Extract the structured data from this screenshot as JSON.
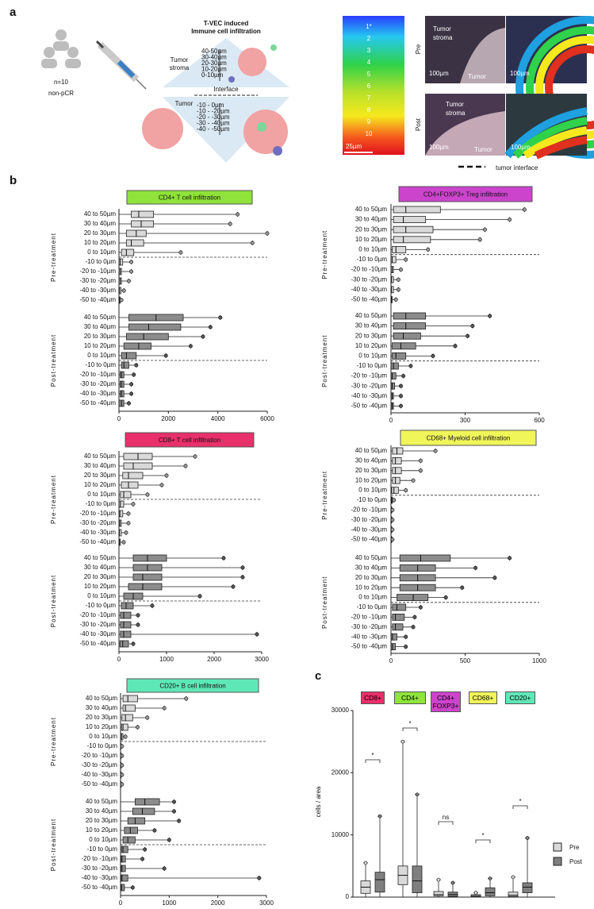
{
  "panel_labels": [
    "a",
    "b",
    "c"
  ],
  "panel_a": {
    "cohort": "n=10",
    "response": "non-pCR",
    "title": "T-VEC induced",
    "subtitle": "Immune cell infiltration",
    "stroma_label": [
      "Tumor",
      "stroma"
    ],
    "stroma_distances": [
      "40-50µm",
      "30-40µm",
      "20-30µm",
      "10-20µm",
      "0-10µm"
    ],
    "interface": "Interface",
    "tumor_label": "Tumor",
    "tumor_distances": [
      "-10 - 0µm",
      "-10 - -20µm",
      "-20 - -30µm",
      "-30 - -40µm",
      "-40 - -50µm"
    ],
    "heatmap_levels": [
      "1*",
      "2",
      "3",
      "4",
      "5",
      "6",
      "7",
      "8",
      "9",
      "10"
    ],
    "heatmap_scale": "25µm",
    "rows": [
      "Pre",
      "Post"
    ],
    "image_labels": {
      "stroma": [
        "Tumor",
        "stroma"
      ],
      "tumor": "Tumor",
      "scale": "100µm"
    },
    "legend": "tumor interface"
  },
  "chart_data": [
    {
      "type": "hbox",
      "title": "CD4+ T cell infiltration",
      "title_color": "#8fe33a",
      "categories": [
        "40 to 50µm",
        "30 to 40µm",
        "20 to 30µm",
        "10 to 20µm",
        "0 to 10µm",
        "-10 to 0µm",
        "-20 to -10µm",
        "-30 to -20µm",
        "-40 to -30µm",
        "-50 to -40µm"
      ],
      "series": [
        {
          "name": "Pre-treatment",
          "color": "#d9d9d9",
          "boxes": [
            [
              0,
              500,
              800,
              1400,
              4800
            ],
            [
              0,
              500,
              900,
              1400,
              4500
            ],
            [
              0,
              300,
              700,
              1100,
              6000
            ],
            [
              0,
              300,
              500,
              1000,
              5400
            ],
            [
              0,
              100,
              300,
              600,
              2500
            ],
            [
              0,
              0,
              50,
              150,
              500
            ],
            [
              0,
              0,
              50,
              100,
              500
            ],
            [
              0,
              0,
              50,
              100,
              400
            ],
            [
              0,
              0,
              20,
              80,
              200
            ],
            [
              0,
              0,
              20,
              50,
              100
            ]
          ]
        },
        {
          "name": "Post-treatment",
          "color": "#8c8c8c",
          "boxes": [
            [
              0,
              400,
              1500,
              2600,
              4100
            ],
            [
              0,
              400,
              1200,
              2500,
              3700
            ],
            [
              0,
              300,
              1000,
              2000,
              3400
            ],
            [
              0,
              200,
              800,
              1300,
              2900
            ],
            [
              0,
              100,
              300,
              700,
              1900
            ],
            [
              0,
              100,
              200,
              400,
              700
            ],
            [
              0,
              50,
              100,
              200,
              600
            ],
            [
              0,
              50,
              100,
              200,
              500
            ],
            [
              0,
              50,
              100,
              200,
              500
            ],
            [
              0,
              0,
              100,
              200,
              400
            ]
          ]
        }
      ],
      "xlim": [
        0,
        6000
      ],
      "xticks": [
        0,
        2000,
        4000,
        6000
      ]
    },
    {
      "type": "hbox",
      "title": "CD4+FOXP3+ Treg infiltration",
      "title_color": "#cc44cc",
      "categories": [
        "40 to 50µm",
        "30 to 40µm",
        "20 to 30µm",
        "10 to 20µm",
        "0 to 10µm",
        "-10 to 0µm",
        "-20 to -10µm",
        "-30 to -20µm",
        "-40 to -30µm",
        "-50 to -40µm"
      ],
      "series": [
        {
          "name": "Pre-treatment",
          "color": "#d9d9d9",
          "boxes": [
            [
              0,
              10,
              60,
              200,
              540
            ],
            [
              0,
              10,
              50,
              140,
              480
            ],
            [
              0,
              10,
              60,
              170,
              380
            ],
            [
              0,
              10,
              50,
              160,
              360
            ],
            [
              0,
              5,
              20,
              60,
              150
            ],
            [
              0,
              0,
              5,
              20,
              60
            ],
            [
              0,
              0,
              5,
              10,
              40
            ],
            [
              0,
              0,
              2,
              10,
              30
            ],
            [
              0,
              0,
              2,
              10,
              30
            ],
            [
              0,
              0,
              2,
              5,
              20
            ]
          ]
        },
        {
          "name": "Post-treatment",
          "color": "#8c8c8c",
          "boxes": [
            [
              0,
              10,
              60,
              140,
              400
            ],
            [
              0,
              10,
              60,
              140,
              330
            ],
            [
              0,
              10,
              50,
              120,
              310
            ],
            [
              0,
              5,
              40,
              100,
              260
            ],
            [
              0,
              5,
              20,
              60,
              170
            ],
            [
              0,
              0,
              10,
              30,
              80
            ],
            [
              0,
              0,
              5,
              20,
              50
            ],
            [
              0,
              0,
              5,
              15,
              40
            ],
            [
              0,
              0,
              5,
              10,
              40
            ],
            [
              0,
              0,
              5,
              10,
              40
            ]
          ]
        }
      ],
      "xlim": [
        0,
        600
      ],
      "xticks": [
        0,
        300,
        600
      ]
    },
    {
      "type": "hbox",
      "title": "CD8+ T cell infiltration",
      "title_color": "#e8306a",
      "categories": [
        "40 to 50µm",
        "30 to 40µm",
        "20 to 30µm",
        "10 to 20µm",
        "0 to 10µm",
        "-10 to 0µm",
        "-20 to -10µm",
        "-30 to -20µm",
        "-40 to -30µm",
        "-50 to -40µm"
      ],
      "series": [
        {
          "name": "Pre-treatment",
          "color": "#d9d9d9",
          "boxes": [
            [
              0,
              100,
              400,
              700,
              1600
            ],
            [
              0,
              100,
              300,
              700,
              1400
            ],
            [
              0,
              80,
              200,
              500,
              1000
            ],
            [
              0,
              50,
              200,
              400,
              900
            ],
            [
              0,
              30,
              100,
              250,
              600
            ],
            [
              0,
              0,
              30,
              100,
              300
            ],
            [
              0,
              0,
              20,
              80,
              200
            ],
            [
              0,
              0,
              20,
              50,
              200
            ],
            [
              0,
              0,
              10,
              50,
              150
            ],
            [
              0,
              0,
              10,
              30,
              100
            ]
          ]
        },
        {
          "name": "Post-treatment",
          "color": "#8c8c8c",
          "boxes": [
            [
              0,
              300,
              600,
              1000,
              2200
            ],
            [
              0,
              300,
              600,
              900,
              2600
            ],
            [
              0,
              300,
              500,
              900,
              2600
            ],
            [
              0,
              200,
              500,
              900,
              2400
            ],
            [
              0,
              100,
              300,
              500,
              1700
            ],
            [
              0,
              50,
              150,
              300,
              700
            ],
            [
              0,
              30,
              100,
              250,
              400
            ],
            [
              0,
              30,
              100,
              250,
              400
            ],
            [
              0,
              30,
              100,
              250,
              2900
            ],
            [
              0,
              20,
              80,
              200,
              300
            ]
          ]
        }
      ],
      "xlim": [
        0,
        3000
      ],
      "xticks": [
        0,
        1000,
        2000,
        3000
      ]
    },
    {
      "type": "hbox",
      "title": "CD68+ Myeloid cell infiltration",
      "title_color": "#f0f55a",
      "categories": [
        "40 to 50µm",
        "30 to 40µm",
        "20 to 30µm",
        "10 to 20µm",
        "0 to 10µm",
        "-10 to 0µm",
        "-20 to -10µm",
        "-30 to -20µm",
        "-40 to -30µm",
        "-50 to -40µm"
      ],
      "series": [
        {
          "name": "Pre-treatment",
          "color": "#d9d9d9",
          "boxes": [
            [
              0,
              10,
              40,
              80,
              300
            ],
            [
              0,
              10,
              30,
              70,
              200
            ],
            [
              0,
              10,
              30,
              70,
              200
            ],
            [
              0,
              10,
              30,
              60,
              150
            ],
            [
              0,
              5,
              20,
              50,
              100
            ],
            [
              0,
              0,
              5,
              10,
              20
            ],
            [
              0,
              0,
              2,
              5,
              10
            ],
            [
              0,
              0,
              2,
              5,
              10
            ],
            [
              0,
              0,
              2,
              5,
              10
            ],
            [
              0,
              0,
              2,
              5,
              10
            ]
          ]
        },
        {
          "name": "Post-treatment",
          "color": "#8c8c8c",
          "boxes": [
            [
              0,
              60,
              200,
              400,
              800
            ],
            [
              0,
              60,
              180,
              300,
              570
            ],
            [
              0,
              60,
              180,
              300,
              700
            ],
            [
              0,
              60,
              180,
              300,
              480
            ],
            [
              0,
              40,
              150,
              250,
              370
            ],
            [
              0,
              10,
              40,
              100,
              200
            ],
            [
              0,
              10,
              30,
              90,
              160
            ],
            [
              0,
              10,
              30,
              80,
              150
            ],
            [
              0,
              0,
              10,
              40,
              100
            ],
            [
              0,
              0,
              10,
              30,
              100
            ]
          ]
        }
      ],
      "xlim": [
        0,
        1000
      ],
      "xticks": [
        0,
        500,
        1000
      ]
    },
    {
      "type": "hbox",
      "title": "CD20+ B cell infiltration",
      "title_color": "#5ee8b8",
      "categories": [
        "40 to 50µm",
        "30 to 40µm",
        "20 to 30µm",
        "10 to 20µm",
        "0 to 10µm",
        "-10 to 0µm",
        "-20 to -10µm",
        "-30 to -20µm",
        "-40 to -30µm",
        "-50 to -40µm"
      ],
      "series": [
        {
          "name": "Pre-treatment",
          "color": "#d9d9d9",
          "boxes": [
            [
              0,
              50,
              150,
              350,
              1350
            ],
            [
              0,
              50,
              100,
              300,
              900
            ],
            [
              0,
              30,
              100,
              250,
              550
            ],
            [
              0,
              20,
              50,
              150,
              350
            ],
            [
              0,
              0,
              20,
              50,
              100
            ],
            [
              0,
              0,
              5,
              10,
              30
            ],
            [
              0,
              0,
              5,
              10,
              30
            ],
            [
              0,
              0,
              5,
              10,
              30
            ],
            [
              0,
              0,
              5,
              10,
              30
            ],
            [
              0,
              0,
              5,
              10,
              30
            ]
          ]
        },
        {
          "name": "Post-treatment",
          "color": "#8c8c8c",
          "boxes": [
            [
              0,
              300,
              500,
              800,
              1100
            ],
            [
              0,
              250,
              450,
              700,
              1100
            ],
            [
              0,
              150,
              300,
              500,
              1200
            ],
            [
              0,
              80,
              200,
              350,
              700
            ],
            [
              0,
              50,
              150,
              300,
              1000
            ],
            [
              0,
              20,
              50,
              150,
              500
            ],
            [
              0,
              10,
              30,
              100,
              450
            ],
            [
              0,
              10,
              30,
              100,
              900
            ],
            [
              0,
              10,
              30,
              150,
              2850
            ],
            [
              0,
              5,
              20,
              80,
              250
            ]
          ]
        }
      ],
      "xlim": [
        0,
        3000
      ],
      "xticks": [
        0,
        1000,
        2000,
        3000
      ]
    },
    {
      "type": "vbox",
      "ylabel": "cells / area",
      "categories": [
        "CD8+",
        "CD4+",
        "CD4+ FOXP3+",
        "CD68+",
        "CD20+"
      ],
      "category_colors": [
        "#e8306a",
        "#8fe33a",
        "#cc44cc",
        "#f0f55a",
        "#5ee8b8"
      ],
      "series": [
        {
          "name": "Pre",
          "color": "#d9d9d9",
          "boxes": [
            [
              0,
              600,
              1600,
              2600,
              5500
            ],
            [
              0,
              2000,
              3500,
              5000,
              25000
            ],
            [
              0,
              200,
              400,
              900,
              2800
            ],
            [
              0,
              50,
              200,
              400,
              700
            ],
            [
              0,
              100,
              300,
              800,
              3200
            ]
          ]
        },
        {
          "name": "Post",
          "color": "#7f7f7f",
          "boxes": [
            [
              0,
              800,
              2800,
              4000,
              13000
            ],
            [
              0,
              700,
              2600,
              5000,
              16500
            ],
            [
              0,
              100,
              400,
              800,
              2300
            ],
            [
              0,
              200,
              700,
              1500,
              3000
            ],
            [
              0,
              700,
              1600,
              2300,
              9500
            ]
          ]
        }
      ],
      "ylim": [
        0,
        30000
      ],
      "yticks": [
        0,
        10000,
        20000,
        30000
      ],
      "significance": [
        "*",
        "*",
        "ns",
        "*",
        "*"
      ]
    }
  ]
}
